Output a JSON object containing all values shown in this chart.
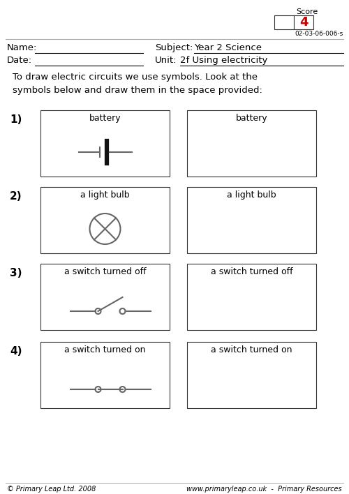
{
  "score_label": "Score",
  "score_value": "4",
  "score_code": "02-03-06-006-s",
  "name_label": "Name:",
  "date_label": "Date:",
  "subject_label": "Subject:",
  "subject_value": "Year 2 Science",
  "unit_label": "Unit:",
  "unit_value": "2f Using electricity",
  "instruction": "To draw electric circuits we use symbols. Look at the\nsymbols below and draw them in the space provided:",
  "items": [
    {
      "number": "1)",
      "label": "battery"
    },
    {
      "number": "2)",
      "label": "a light bulb"
    },
    {
      "number": "3)",
      "label": "a switch turned off"
    },
    {
      "number": "4)",
      "label": "a switch turned on"
    }
  ],
  "footer_left": "© Primary Leap Ltd. 2008",
  "footer_right": "www.primaryleap.co.uk  -  Primary Resources",
  "bg_color": "#ffffff",
  "box_color": "#333333",
  "text_color": "#000000",
  "red_color": "#cc0000",
  "sym_color": "#666666",
  "score_box_color": "#555555"
}
